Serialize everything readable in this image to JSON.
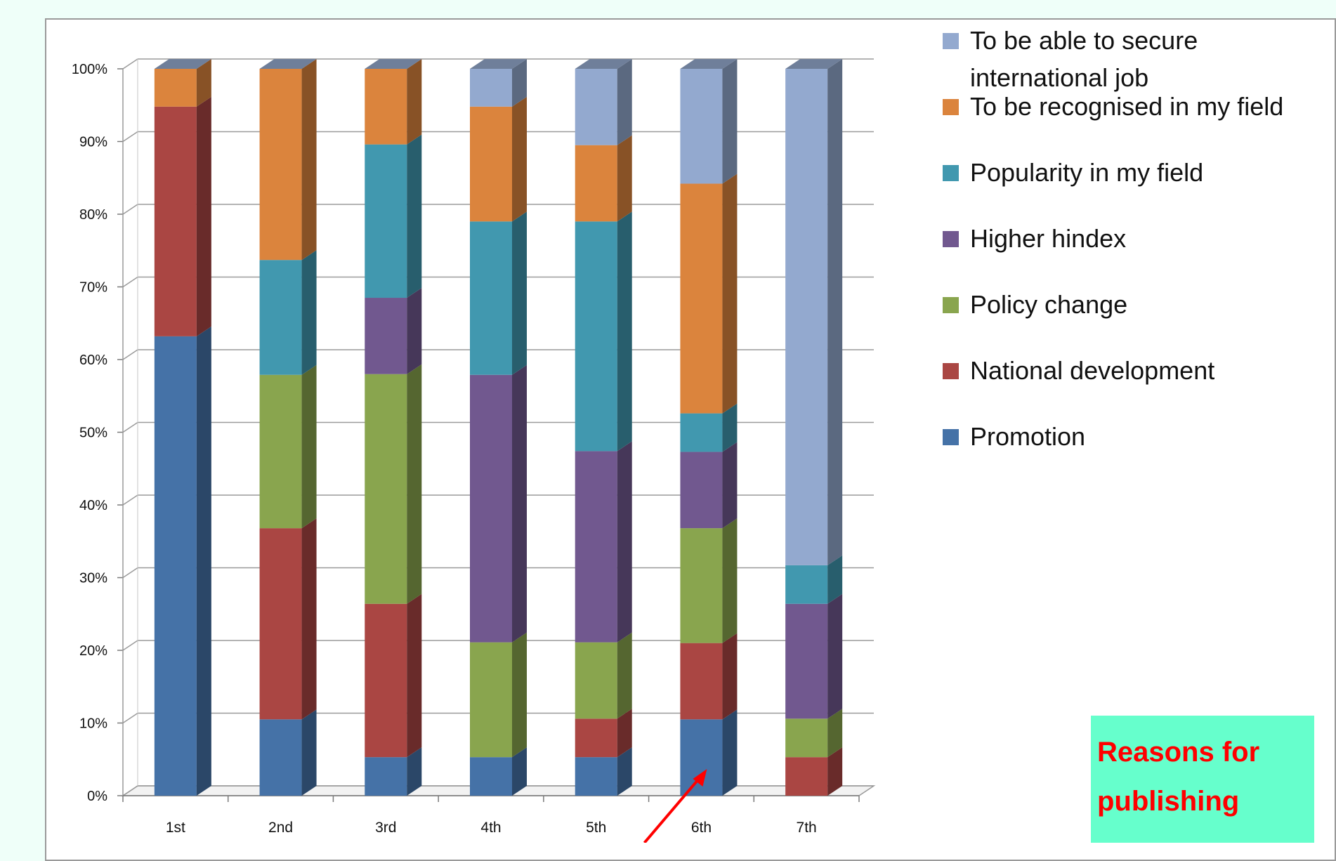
{
  "chart_data": {
    "type": "bar",
    "stacked": true,
    "three_d": true,
    "categories": [
      "1st",
      "2nd",
      "3rd",
      "4th",
      "5th",
      "6th",
      "7th"
    ],
    "ylim": [
      0,
      100
    ],
    "yticks": [
      "0%",
      "10%",
      "20%",
      "30%",
      "40%",
      "50%",
      "60%",
      "70%",
      "80%",
      "90%",
      "100%"
    ],
    "grid": true,
    "legend_position": "right",
    "series": [
      {
        "name": "Promotion",
        "color": "#4572a7",
        "values": [
          63.2,
          10.5,
          5.3,
          5.3,
          5.3,
          10.5,
          0
        ]
      },
      {
        "name": "National development",
        "color": "#aa4643",
        "values": [
          31.6,
          26.3,
          21.1,
          0,
          5.3,
          10.5,
          5.3
        ]
      },
      {
        "name": "Policy change",
        "color": "#89a54e",
        "values": [
          0,
          21.1,
          31.6,
          15.8,
          10.5,
          15.8,
          5.3
        ]
      },
      {
        "name": "Higher hindex",
        "color": "#71588f",
        "values": [
          0,
          0,
          10.5,
          36.8,
          26.3,
          10.5,
          15.8
        ]
      },
      {
        "name": "Popularity in my field",
        "color": "#4198af",
        "values": [
          0,
          15.8,
          21.1,
          21.1,
          31.6,
          5.3,
          5.3
        ]
      },
      {
        "name": "To be recognised in my field",
        "color": "#db843d",
        "values": [
          5.2,
          26.3,
          10.4,
          15.8,
          10.5,
          31.6,
          0
        ]
      },
      {
        "name": "To be able to secure international job",
        "color": "#93a9cf",
        "values": [
          0,
          0,
          0,
          5.2,
          10.5,
          15.8,
          68.3
        ]
      }
    ],
    "legend_order": [
      "To be able to secure international job",
      "To be recognised in my field",
      "Popularity in my field",
      "Higher hindex",
      "Policy change",
      "National development",
      "Promotion"
    ],
    "legend_lines": [
      [
        "To be able to secure",
        "international job"
      ],
      [
        "To be recognised in my field"
      ],
      [
        "Popularity in my field"
      ],
      [
        "Higher hindex"
      ],
      [
        "Policy change"
      ],
      [
        "National development"
      ],
      [
        "Promotion"
      ]
    ]
  },
  "callout": {
    "line1": "Reasons for",
    "line2": "publishing"
  },
  "arrow": {
    "color": "#ff0000",
    "points_to_category": "6th"
  },
  "colors": {
    "background": "#effff9",
    "panel": "#ffffff",
    "callout_bg": "#66ffcc",
    "callout_text": "#ff0000"
  }
}
